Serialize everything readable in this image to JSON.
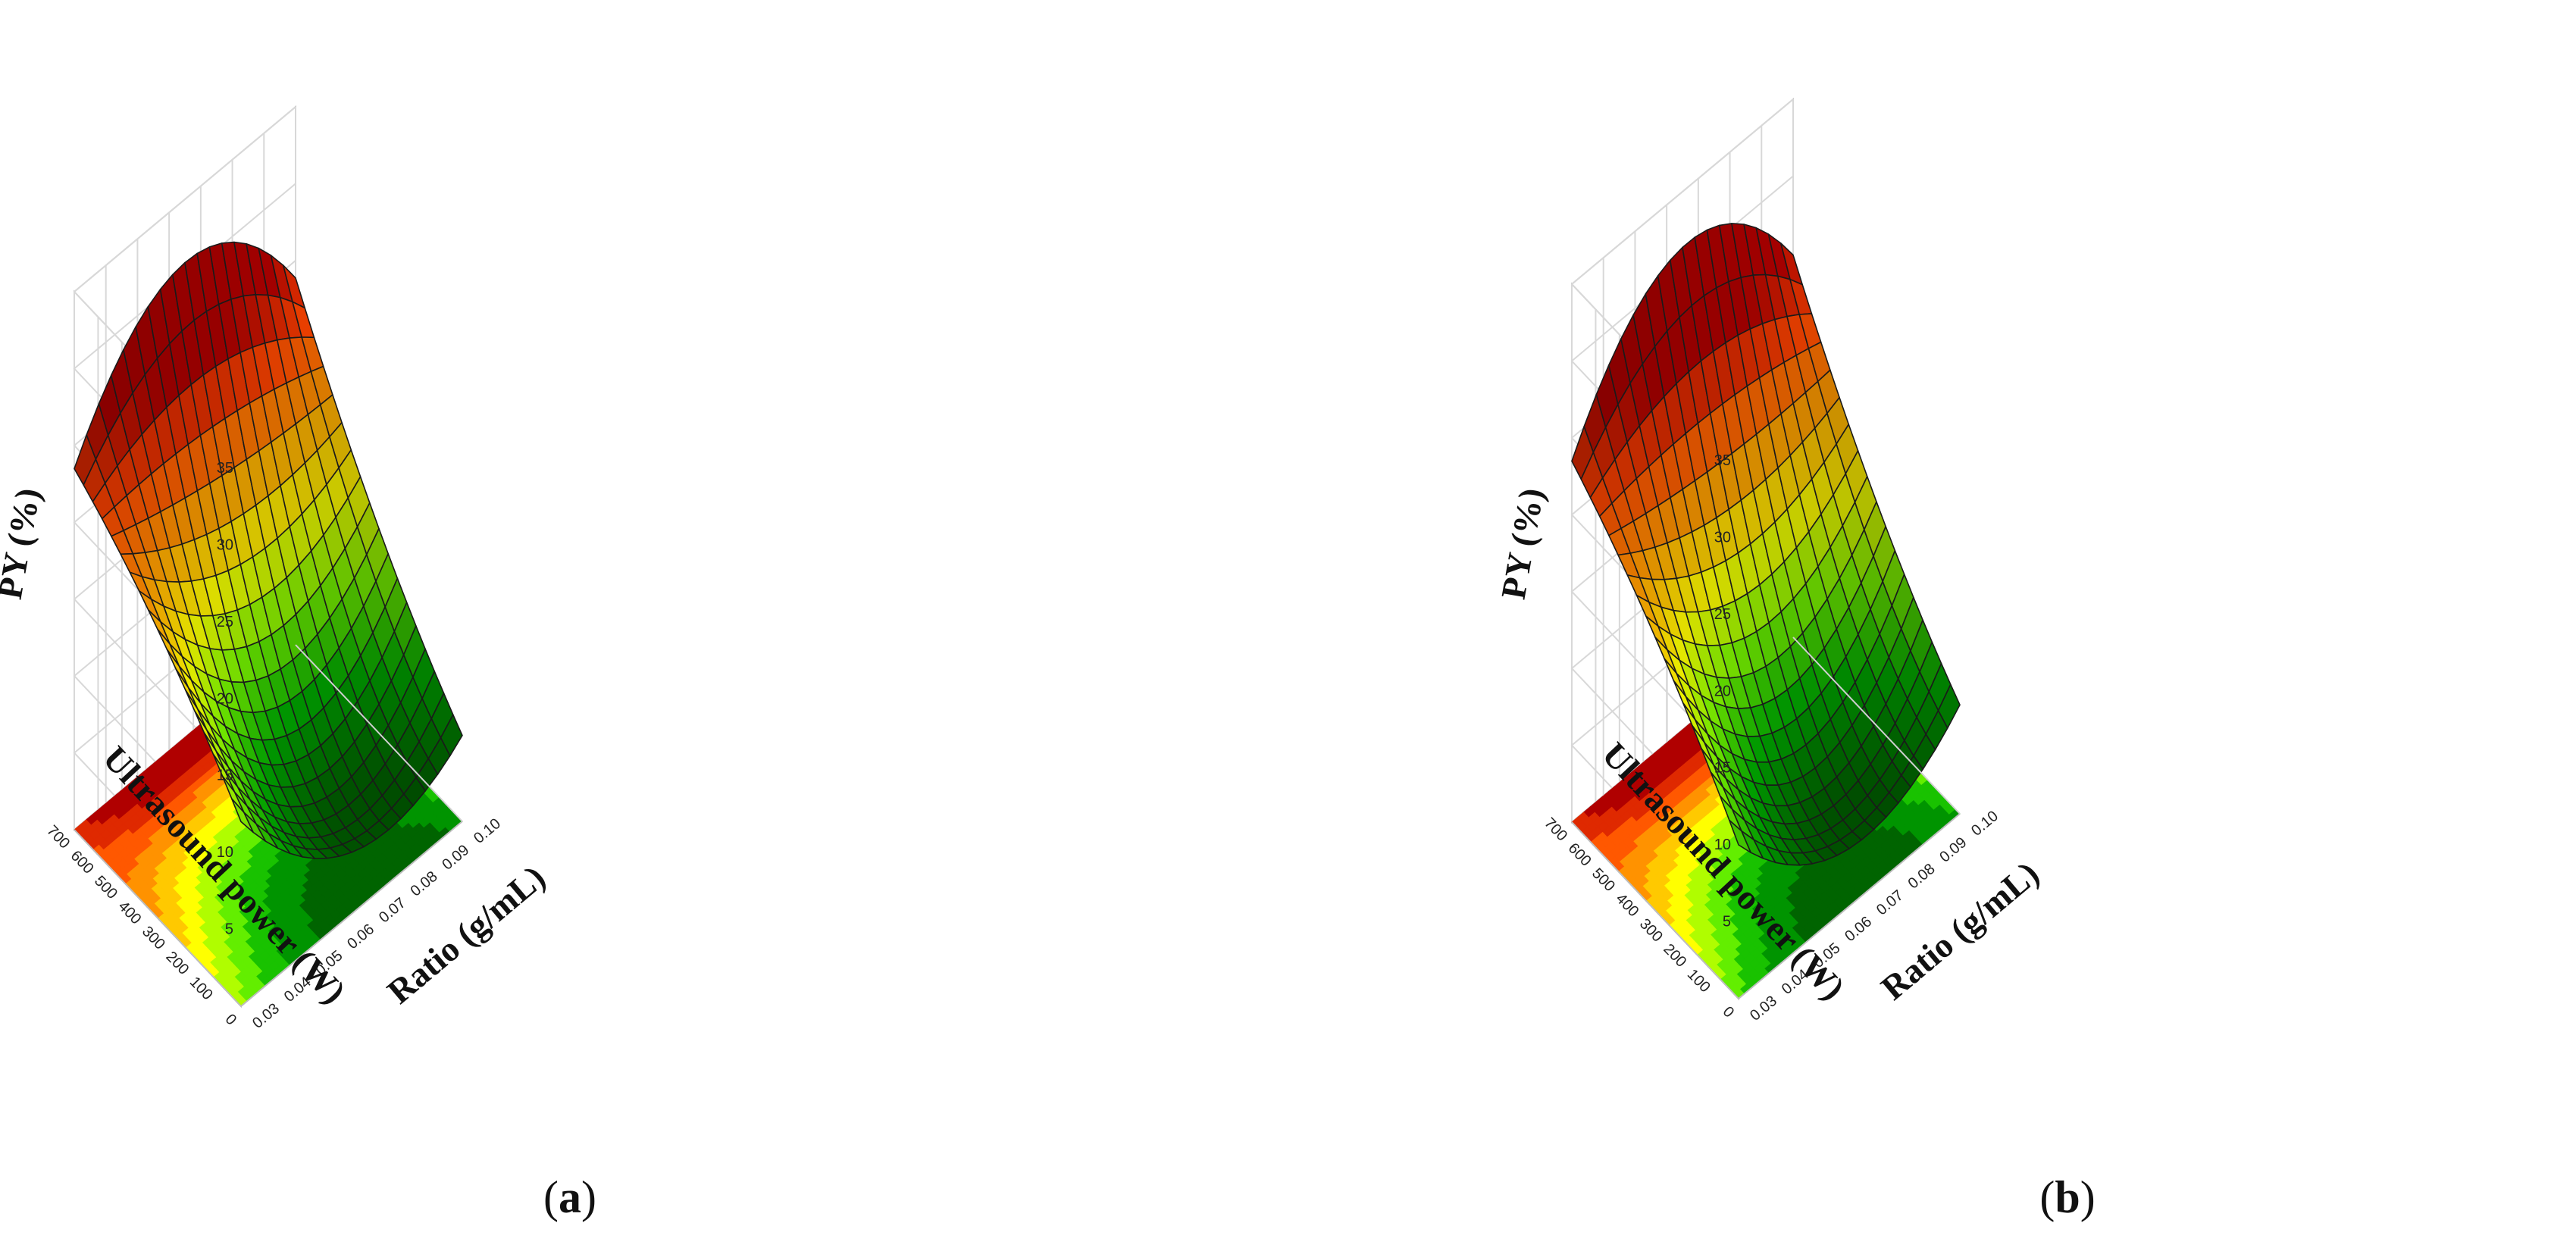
{
  "figure": {
    "panels": [
      {
        "label_open": "(",
        "label_letter": "a",
        "label_close": ")"
      },
      {
        "label_open": "(",
        "label_letter": "b",
        "label_close": ")"
      }
    ]
  },
  "chart_data": [
    {
      "type": "surface3d",
      "panel": "a",
      "title": "",
      "xlabel": "Ratio (g/mL)",
      "ylabel": "Ultrasound power (W)",
      "zlabel": "PY (%)",
      "x_ticks": [
        "0.03",
        "0.04",
        "0.05",
        "0.06",
        "0.07",
        "0.08",
        "0.09",
        "0.10"
      ],
      "y_ticks": [
        "0",
        "100",
        "200",
        "300",
        "400",
        "500",
        "600",
        "700"
      ],
      "z_ticks": [
        "5",
        "10",
        "15",
        "20",
        "25",
        "30",
        "35"
      ],
      "xlim": [
        0.03,
        0.1
      ],
      "ylim": [
        0,
        700
      ],
      "zlim": [
        0,
        35
      ],
      "grid": true,
      "colormap": [
        "#006400",
        "#00b400",
        "#7cfc00",
        "#ffff00",
        "#ffa500",
        "#ff4500",
        "#b00000"
      ],
      "surface_z_corners": {
        "x_min_y_min": 11.0,
        "x_max_y_min": 6.5,
        "x_min_y_max": 25.0,
        "x_max_y_max": 22.5
      },
      "grid_resolution": 18
    },
    {
      "type": "surface3d",
      "panel": "b",
      "title": "",
      "xlabel": "Ratio (g/mL)",
      "ylabel": "Ultrasound power (W)",
      "zlabel": "PY (%)",
      "x_ticks": [
        "0.03",
        "0.04",
        "0.05",
        "0.06",
        "0.07",
        "0.08",
        "0.09",
        "0.10"
      ],
      "y_ticks": [
        "0",
        "100",
        "200",
        "300",
        "400",
        "500",
        "600",
        "700"
      ],
      "z_ticks": [
        "5",
        "10",
        "15",
        "20",
        "25",
        "30",
        "35"
      ],
      "xlim": [
        0.03,
        0.1
      ],
      "ylim": [
        0,
        700
      ],
      "zlim": [
        0,
        35
      ],
      "grid": true,
      "colormap": [
        "#006400",
        "#00b400",
        "#7cfc00",
        "#ffff00",
        "#ffa500",
        "#ff4500",
        "#b00000"
      ],
      "surface_z_corners": {
        "x_min_y_min": 9.0,
        "x_max_y_min": 8.0,
        "x_min_y_max": 25.0,
        "x_max_y_max": 23.5
      },
      "grid_resolution": 18
    }
  ]
}
